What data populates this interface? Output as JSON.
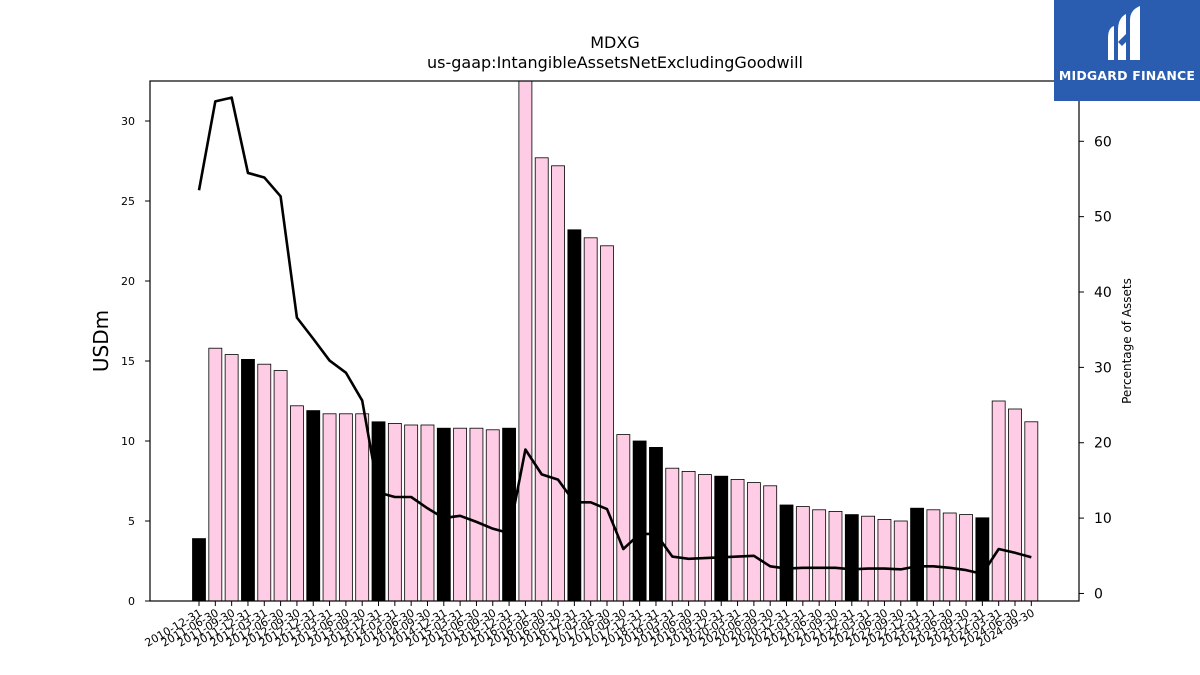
{
  "logo": {
    "text": "MIDGARD FINANCE",
    "bg_color": "#2a5db0"
  },
  "chart_data": {
    "type": "bar",
    "title": "MDXG",
    "subtitle": "us-gaap:IntangibleAssetsNetExcludingGoodwill",
    "ylabel": "USDm",
    "y2label": "Percentage of Assets",
    "ylim": [
      0,
      32.5
    ],
    "y2lim": [
      -1,
      68
    ],
    "yticks": [
      0,
      5,
      10,
      15,
      20,
      25,
      30
    ],
    "y2ticks": [
      0,
      10,
      20,
      30,
      40,
      50,
      60
    ],
    "colors": {
      "annual": "#000000",
      "quarter": "#ffcce6",
      "line": "#000000"
    },
    "categories": [
      "2010-12-31",
      "2011-06-30",
      "2011-09-30",
      "2011-12-31",
      "2012-03-31",
      "2012-06-30",
      "2012-09-30",
      "2012-12-31",
      "2013-03-31",
      "2013-06-30",
      "2013-09-30",
      "2013-12-31",
      "2014-03-31",
      "2014-06-30",
      "2014-09-30",
      "2014-12-31",
      "2015-03-31",
      "2015-06-30",
      "2015-09-30",
      "2015-12-31",
      "2016-03-31",
      "2016-06-30",
      "2016-09-30",
      "2016-12-31",
      "2017-03-31",
      "2017-06-30",
      "2017-09-30",
      "2017-12-31",
      "2018-12-31",
      "2019-03-31",
      "2019-06-30",
      "2019-09-30",
      "2019-12-31",
      "2020-03-31",
      "2020-06-30",
      "2020-09-30",
      "2020-12-31",
      "2021-03-31",
      "2021-06-30",
      "2021-09-30",
      "2021-12-31",
      "2022-03-31",
      "2022-06-30",
      "2022-09-30",
      "2022-12-31",
      "2023-03-31",
      "2023-06-30",
      "2023-09-30",
      "2023-12-31",
      "2024-03-31",
      "2024-06-30",
      "2024-09-30"
    ],
    "series": [
      {
        "kind": "bar",
        "values": [
          3.9,
          15.8,
          15.4,
          15.1,
          14.8,
          14.4,
          12.2,
          11.9,
          11.7,
          11.7,
          11.7,
          11.2,
          11.1,
          11.0,
          11.0,
          10.8,
          10.8,
          10.8,
          10.7,
          10.8,
          32.6,
          27.7,
          27.2,
          23.2,
          22.7,
          22.2,
          10.4,
          10.0,
          9.6,
          8.3,
          8.1,
          7.9,
          7.8,
          7.6,
          7.4,
          7.2,
          6.0,
          5.9,
          5.7,
          5.6,
          5.4,
          5.3,
          5.1,
          5.0,
          5.8,
          5.7,
          5.5,
          5.4,
          5.2,
          12.5,
          12.0,
          11.2
        ],
        "annual": [
          true,
          false,
          false,
          true,
          false,
          false,
          false,
          true,
          false,
          false,
          false,
          true,
          false,
          false,
          false,
          true,
          false,
          false,
          false,
          true,
          false,
          false,
          false,
          true,
          false,
          false,
          false,
          true,
          true,
          false,
          false,
          false,
          true,
          false,
          false,
          false,
          true,
          false,
          false,
          false,
          true,
          false,
          false,
          false,
          true,
          false,
          false,
          false,
          true,
          false,
          false,
          false
        ]
      },
      {
        "kind": "line",
        "axis": "right",
        "values": [
          53.5,
          65.3,
          65.8,
          55.8,
          55.2,
          52.7,
          36.6,
          33.8,
          30.9,
          29.3,
          25.6,
          13.4,
          12.8,
          12.8,
          11.3,
          10.0,
          10.3,
          9.5,
          8.6,
          8.0,
          19.1,
          15.8,
          15.1,
          12.1,
          12.1,
          11.2,
          5.9,
          7.9,
          7.9,
          4.9,
          4.6,
          4.7,
          4.8,
          4.9,
          5.0,
          3.6,
          3.3,
          3.4,
          3.4,
          3.4,
          3.2,
          3.3,
          3.3,
          3.2,
          3.6,
          3.6,
          3.4,
          3.1,
          2.6,
          5.9,
          5.4,
          4.8
        ]
      }
    ]
  }
}
